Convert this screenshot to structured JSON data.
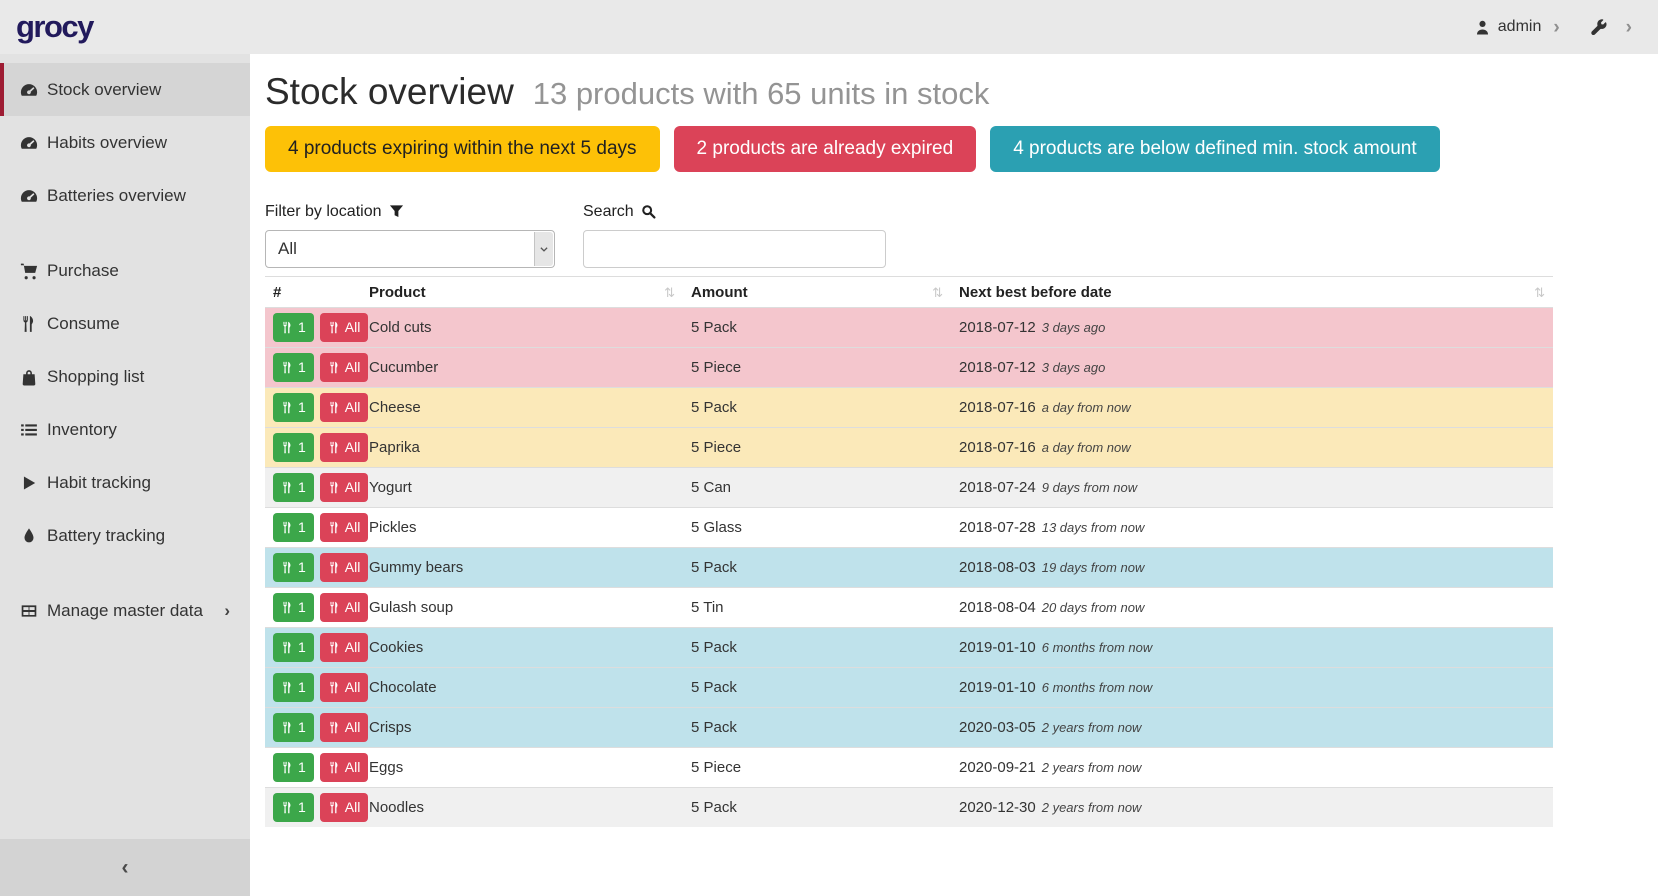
{
  "topbar": {
    "logo": "grocy",
    "user": "admin"
  },
  "sidebar": {
    "items": [
      {
        "label": "Stock overview",
        "icon": "gauge",
        "active": true,
        "group_start": false,
        "chevron": false
      },
      {
        "label": "Habits overview",
        "icon": "gauge",
        "active": false,
        "group_start": false,
        "chevron": false
      },
      {
        "label": "Batteries overview",
        "icon": "gauge",
        "active": false,
        "group_start": false,
        "chevron": false
      },
      {
        "label": "Purchase",
        "icon": "cart",
        "active": false,
        "group_start": true,
        "chevron": false
      },
      {
        "label": "Consume",
        "icon": "utensils",
        "active": false,
        "group_start": false,
        "chevron": false
      },
      {
        "label": "Shopping list",
        "icon": "bag",
        "active": false,
        "group_start": false,
        "chevron": false
      },
      {
        "label": "Inventory",
        "icon": "list",
        "active": false,
        "group_start": false,
        "chevron": false
      },
      {
        "label": "Habit tracking",
        "icon": "play",
        "active": false,
        "group_start": false,
        "chevron": false
      },
      {
        "label": "Battery tracking",
        "icon": "drop",
        "active": false,
        "group_start": false,
        "chevron": false
      },
      {
        "label": "Manage master data",
        "icon": "grid",
        "active": false,
        "group_start": true,
        "chevron": true
      }
    ],
    "collapse_glyph": "‹"
  },
  "header": {
    "title": "Stock overview",
    "subtitle": "13 products with 65 units in stock"
  },
  "alerts": [
    {
      "type": "warning",
      "label": "4 products expiring within the next 5 days"
    },
    {
      "type": "danger",
      "label": "2 products are already expired"
    },
    {
      "type": "info",
      "label": "4 products are below defined min. stock amount"
    }
  ],
  "filters": {
    "location_label": "Filter by location",
    "location_value": "All",
    "search_label": "Search",
    "search_value": ""
  },
  "table": {
    "columns": [
      {
        "label": "#",
        "sortable": false
      },
      {
        "label": "Product",
        "sortable": true
      },
      {
        "label": "Amount",
        "sortable": true
      },
      {
        "label": "Next best before date",
        "sortable": true
      }
    ],
    "row_buttons": {
      "one": "1",
      "all": "All"
    },
    "rows": [
      {
        "product": "Cold cuts",
        "amount": "5 Pack",
        "date": "2018-07-12",
        "relative": "3 days ago",
        "status": "expired"
      },
      {
        "product": "Cucumber",
        "amount": "5 Piece",
        "date": "2018-07-12",
        "relative": "3 days ago",
        "status": "expired"
      },
      {
        "product": "Cheese",
        "amount": "5 Pack",
        "date": "2018-07-16",
        "relative": "a day from now",
        "status": "expiring"
      },
      {
        "product": "Paprika",
        "amount": "5 Piece",
        "date": "2018-07-16",
        "relative": "a day from now",
        "status": "expiring"
      },
      {
        "product": "Yogurt",
        "amount": "5 Can",
        "date": "2018-07-24",
        "relative": "9 days from now",
        "status": "normal"
      },
      {
        "product": "Pickles",
        "amount": "5 Glass",
        "date": "2018-07-28",
        "relative": "13 days from now",
        "status": "normal"
      },
      {
        "product": "Gummy bears",
        "amount": "5 Pack",
        "date": "2018-08-03",
        "relative": "19 days from now",
        "status": "belowmin"
      },
      {
        "product": "Gulash soup",
        "amount": "5 Tin",
        "date": "2018-08-04",
        "relative": "20 days from now",
        "status": "normal"
      },
      {
        "product": "Cookies",
        "amount": "5 Pack",
        "date": "2019-01-10",
        "relative": "6 months from now",
        "status": "belowmin"
      },
      {
        "product": "Chocolate",
        "amount": "5 Pack",
        "date": "2019-01-10",
        "relative": "6 months from now",
        "status": "belowmin"
      },
      {
        "product": "Crisps",
        "amount": "5 Pack",
        "date": "2020-03-05",
        "relative": "2 years from now",
        "status": "belowmin"
      },
      {
        "product": "Eggs",
        "amount": "5 Piece",
        "date": "2020-09-21",
        "relative": "2 years from now",
        "status": "normal"
      },
      {
        "product": "Noodles",
        "amount": "5 Pack",
        "date": "2020-12-30",
        "relative": "2 years from now",
        "status": "normal"
      }
    ]
  },
  "colors": {
    "warning": "#fdc107",
    "danger": "#db4358",
    "info": "#2ba0b2",
    "success": "#3ca74a",
    "active_nav_border": "#9e1c33",
    "row_expired": "#f4c6cd",
    "row_expiring": "#fbe9b9",
    "row_belowmin": "#bfe2eb"
  }
}
